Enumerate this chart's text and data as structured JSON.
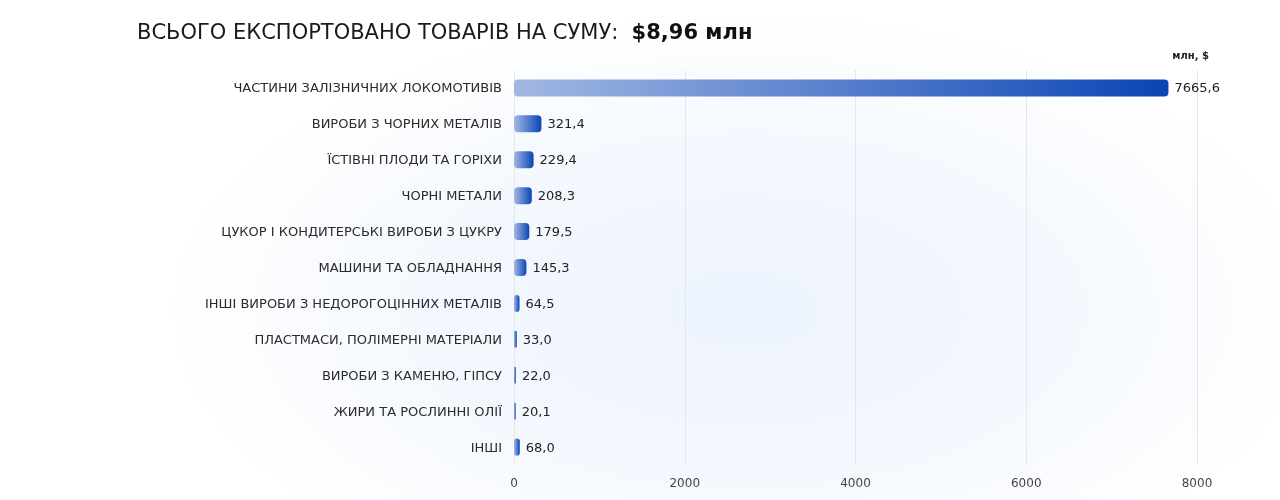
{
  "chart_data": {
    "type": "bar",
    "orientation": "horizontal",
    "title": "ВСЬОГО ЕКСПОРТОВАНО ТОВАРІВ НА СУМУ: $8,96 млн",
    "xlabel": "млн, $",
    "categories": [
      "ЧАСТИНИ ЗАЛІЗНИЧНИХ ЛОКОМОТИВІВ",
      "ВИРОБИ З ЧОРНИХ МЕТАЛІВ",
      "ЇСТІВНІ ПЛОДИ ТА ГОРІХИ",
      "ЧОРНІ МЕТАЛИ",
      "ЦУКОР І КОНДИТЕРСЬКІ ВИРОБИ З ЦУКРУ",
      "МАШИНИ ТА ОБЛАДНАННЯ",
      "ІНШІ ВИРОБИ З НЕДОРОГОЦІННИХ МЕТАЛІВ",
      "ПЛАСТМАСИ, ПОЛІМЕРНІ МАТЕРІАЛИ",
      "ВИРОБИ З КАМЕНЮ, ГІПСУ",
      "ЖИРИ ТА РОСЛИННІ ОЛІЇ",
      "ІНШІ"
    ],
    "values": [
      7665.6,
      321.4,
      229.4,
      208.3,
      179.5,
      145.3,
      64.5,
      33.0,
      22.0,
      20.1,
      68.0
    ],
    "value_labels": [
      "7665,6",
      "321,4",
      "229,4",
      "208,3",
      "179,5",
      "145,3",
      "64,5",
      "33,0",
      "22,0",
      "20,1",
      "68,0"
    ],
    "color": "#0a45b5",
    "xlim": [
      0,
      8000
    ],
    "xticks": [
      0,
      2000,
      4000,
      6000,
      8000
    ],
    "grid": "x"
  }
}
